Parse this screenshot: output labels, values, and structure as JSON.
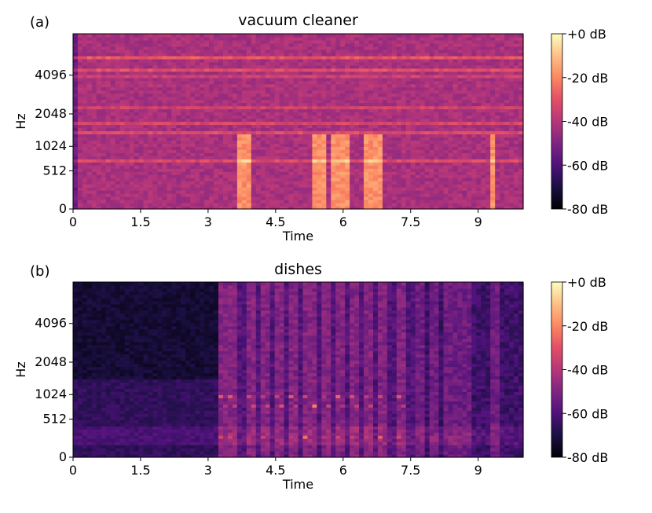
{
  "chart_data": [
    {
      "type": "heatmap",
      "panel_label": "(a)",
      "title": "vacuum cleaner",
      "xlabel": "Time",
      "ylabel": "Hz",
      "x_ticks": [
        "0",
        "1.5",
        "3",
        "4.5",
        "6",
        "7.5",
        "9"
      ],
      "x_tick_values": [
        0,
        1.5,
        3,
        4.5,
        6,
        7.5,
        9
      ],
      "y_ticks": [
        "0",
        "512",
        "1024",
        "2048",
        "4096"
      ],
      "y_tick_values": [
        0,
        512,
        1024,
        2048,
        4096
      ],
      "xlim": [
        0,
        10
      ],
      "ylim": [
        0,
        8000
      ],
      "y_scale": "mel",
      "colormap": "magma",
      "colorbar": {
        "ticks": [
          "+0 dB",
          "-20 dB",
          "-40 dB",
          "-60 dB",
          "-80 dB"
        ],
        "range": [
          -80,
          0
        ]
      },
      "description_of_content": {
        "background_level_db": -55,
        "harmonic_bands_hz": [
          350,
          700,
          1400,
          1700,
          2300,
          3000,
          3500,
          4000,
          4500,
          5500
        ],
        "transient_times_s": [
          3.7,
          3.85,
          5.35,
          5.5,
          5.85,
          6.05,
          6.55,
          6.75,
          9.3
        ]
      }
    },
    {
      "type": "heatmap",
      "panel_label": "(b)",
      "title": "dishes",
      "xlabel": "Time",
      "ylabel": "Hz",
      "x_ticks": [
        "0",
        "1.5",
        "3",
        "4.5",
        "6",
        "7.5",
        "9"
      ],
      "x_tick_values": [
        0,
        1.5,
        3,
        4.5,
        6,
        7.5,
        9
      ],
      "y_ticks": [
        "0",
        "512",
        "1024",
        "2048",
        "4096"
      ],
      "y_tick_values": [
        0,
        512,
        1024,
        2048,
        4096
      ],
      "xlim": [
        0,
        10
      ],
      "ylim": [
        0,
        8000
      ],
      "y_scale": "mel",
      "colormap": "magma",
      "colorbar": {
        "ticks": [
          "+0 dB",
          "-20 dB",
          "-40 dB",
          "-60 dB",
          "-80 dB"
        ],
        "range": [
          -80,
          0
        ]
      },
      "description_of_content": {
        "background_level_db": -75,
        "active_region_s": [
          3.25,
          7.6
        ],
        "harmonic_stack_base_hz": 250,
        "stroke_times_s": [
          3.35,
          3.55,
          3.95,
          4.25,
          4.55,
          4.9,
          5.25,
          5.6,
          5.95,
          6.25,
          6.55,
          6.9,
          7.3,
          7.7,
          8.0,
          8.4,
          8.7,
          9.4
        ]
      }
    }
  ]
}
